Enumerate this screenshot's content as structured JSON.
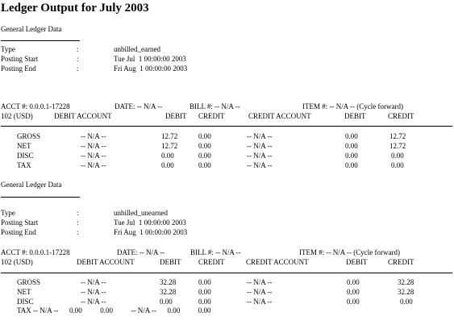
{
  "page_title": "Ledger Output for July 2003",
  "sections": [
    {
      "heading": "General Ledger Data",
      "meta": [
        {
          "label": "Type",
          "sep": ":",
          "value": "unbilled_earned"
        },
        {
          "label": "Posting Start",
          "sep": ":",
          "value": "Tue Jul  1 00:00:00 2003"
        },
        {
          "label": "Posting End",
          "sep": ":",
          "value": "Fri Aug  1 00:00:00 2003"
        }
      ],
      "acct": "ACCT #: 0.0.0.1-17228",
      "date": "DATE: -- N/A --",
      "bill": "BILL #: -- N/A --",
      "item": "ITEM #: -- N/A -- (Cycle forward)",
      "currency": "102 (USD)",
      "columns": [
        "DEBIT ACCOUNT",
        "DEBIT",
        "CREDIT",
        "CREDIT ACCOUNT",
        "DEBIT",
        "CREDIT"
      ],
      "rows": [
        {
          "name": "GROSS",
          "debit_account": "-- N/A --",
          "debit": "12.72",
          "credit": "0.00",
          "credit_account": "-- N/A --",
          "debit2": "0.00",
          "credit2": "12.72"
        },
        {
          "name": "NET",
          "debit_account": "-- N/A --",
          "debit": "12.72",
          "credit": "0.00",
          "credit_account": "-- N/A --",
          "debit2": "0.00",
          "credit2": "12.72"
        },
        {
          "name": "DISC",
          "debit_account": "-- N/A --",
          "debit": "0.00",
          "credit": "0.00",
          "credit_account": "-- N/A --",
          "debit2": "0.00",
          "credit2": "0.00"
        },
        {
          "name": "TAX",
          "debit_account": "-- N/A --",
          "debit": "0.00",
          "credit": "0.00",
          "credit_account": "-- N/A --",
          "debit2": "0.00",
          "credit2": "0.00"
        }
      ]
    },
    {
      "heading": "General Ledger Data",
      "meta": [
        {
          "label": "Type",
          "sep": ":",
          "value": "unbilled_unearned"
        },
        {
          "label": "Posting Start",
          "sep": ":",
          "value": "Tue Jul  1 00:00:00 2003"
        },
        {
          "label": "Posting End",
          "sep": ":",
          "value": "Fri Aug  1 00:00:00 2003"
        }
      ],
      "acct": "ACCT #: 0.0.0.1-17228",
      "date": "DATE: -- N/A --",
      "bill": "BILL #: -- N/A --",
      "item": "ITEM #: -- N/A -- (Cycle forward)",
      "currency": "102 (USD)",
      "columns": [
        "DEBIT ACCOUNT",
        "DEBIT",
        "CREDIT",
        "CREDIT ACCOUNT",
        "DEBIT",
        "CREDIT"
      ],
      "rows": [
        {
          "name": "GROSS",
          "debit_account": "-- N/A --",
          "debit": "32.28",
          "credit": "0.00",
          "credit_account": "-- N/A --",
          "debit2": "0.00",
          "credit2": "32.28"
        },
        {
          "name": "NET",
          "debit_account": "-- N/A --",
          "debit": "32.28",
          "credit": "0.00",
          "credit_account": "-- N/A --",
          "debit2": "0.00",
          "credit2": "32.28"
        },
        {
          "name": "DISC",
          "debit_account": "-- N/A --",
          "debit": "0.00",
          "credit": "0.00",
          "credit_account": "-- N/A --",
          "debit2": "0.00",
          "credit2": "0.00"
        }
      ],
      "trailing_line": "TAX -- N/A --      0.00          0.00          -- N/A --      0.00          0.00"
    }
  ]
}
